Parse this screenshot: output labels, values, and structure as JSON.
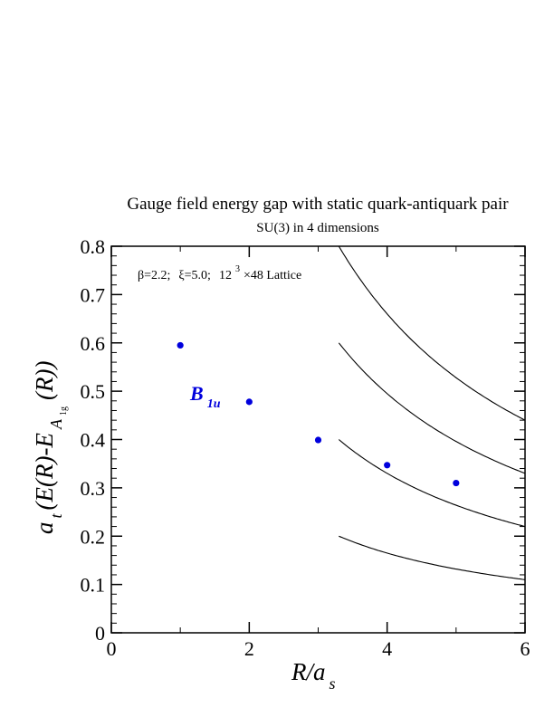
{
  "chart_data": {
    "type": "scatter",
    "title": "Gauge field energy gap with static quark-antiquark pair",
    "subtitle": "SU(3) in 4 dimensions",
    "annotation": {
      "beta": "β=2.2;",
      "xi": "ξ=5.0;",
      "lattice_base": "12",
      "lattice_exp": "3",
      "lattice_rest": "×48 Lattice"
    },
    "xlabel": {
      "main": "R/a",
      "sub": "s"
    },
    "ylabel": {
      "part1": "a",
      "part1_sub": "t",
      "part2": "(E(R)-E",
      "part2_sub": "A",
      "part2_subsub": "1g",
      "part3": "(R))"
    },
    "xlim": [
      0,
      6
    ],
    "ylim": [
      0,
      0.8
    ],
    "x_ticks": [
      0,
      2,
      4,
      6
    ],
    "x_tick_labels": [
      "0",
      "2",
      "4",
      "6"
    ],
    "y_ticks": [
      0,
      0.1,
      0.2,
      0.3,
      0.4,
      0.5,
      0.6,
      0.7,
      0.8
    ],
    "y_tick_labels": [
      "0",
      "0.1",
      "0.2",
      "0.3",
      "0.4",
      "0.5",
      "0.6",
      "0.7",
      "0.8"
    ],
    "grid": false,
    "series": [
      {
        "name_main": "B",
        "name_sub": "1u",
        "color": "#0000dd",
        "points": [
          {
            "x": 1,
            "y": 0.595
          },
          {
            "x": 2,
            "y": 0.478
          },
          {
            "x": 3,
            "y": 0.399
          },
          {
            "x": 4,
            "y": 0.347
          },
          {
            "x": 5,
            "y": 0.31
          }
        ]
      }
    ],
    "reference_curves": {
      "color": "#000000",
      "x_start": 3.3,
      "x_end": 6.0,
      "form": "y = n * 0.66 / x",
      "n_values": [
        1,
        2,
        3,
        4
      ]
    }
  }
}
